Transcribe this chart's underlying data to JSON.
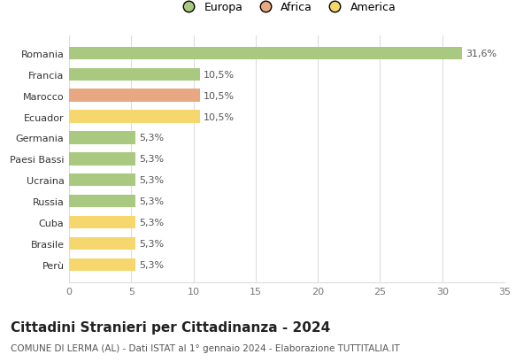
{
  "categories": [
    "Perù",
    "Brasile",
    "Cuba",
    "Russia",
    "Ucraina",
    "Paesi Bassi",
    "Germania",
    "Ecuador",
    "Marocco",
    "Francia",
    "Romania"
  ],
  "values": [
    5.3,
    5.3,
    5.3,
    5.3,
    5.3,
    5.3,
    5.3,
    10.5,
    10.5,
    10.5,
    31.6
  ],
  "labels": [
    "5,3%",
    "5,3%",
    "5,3%",
    "5,3%",
    "5,3%",
    "5,3%",
    "5,3%",
    "10,5%",
    "10,5%",
    "10,5%",
    "31,6%"
  ],
  "colors": [
    "#f5d76e",
    "#f5d76e",
    "#f5d76e",
    "#a8c97f",
    "#a8c97f",
    "#a8c97f",
    "#a8c97f",
    "#f5d76e",
    "#e8a882",
    "#a8c97f",
    "#a8c97f"
  ],
  "legend": [
    {
      "label": "Europa",
      "color": "#a8c97f"
    },
    {
      "label": "Africa",
      "color": "#e8a882"
    },
    {
      "label": "America",
      "color": "#f5d76e"
    }
  ],
  "xlim": [
    0,
    35
  ],
  "xticks": [
    0,
    5,
    10,
    15,
    20,
    25,
    30,
    35
  ],
  "title": "Cittadini Stranieri per Cittadinanza - 2024",
  "subtitle": "COMUNE DI LERMA (AL) - Dati ISTAT al 1° gennaio 2024 - Elaborazione TUTTITALIA.IT",
  "background_color": "#ffffff",
  "grid_color": "#dddddd",
  "bar_height": 0.6,
  "label_fontsize": 8,
  "title_fontsize": 11,
  "subtitle_fontsize": 7.5,
  "ytick_fontsize": 8,
  "xtick_fontsize": 8,
  "legend_fontsize": 9
}
